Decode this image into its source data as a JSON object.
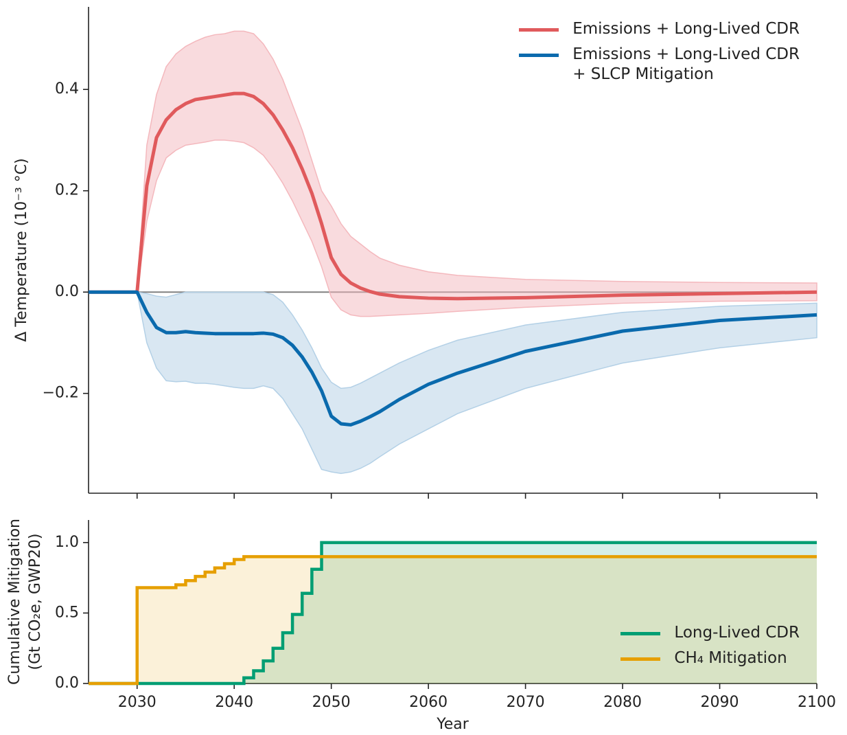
{
  "chart_data": [
    {
      "type": "line",
      "ylabel": "Δ Temperature (10⁻³ °C)",
      "xlim": [
        2025,
        2100
      ],
      "ylim": [
        -0.397,
        0.563
      ],
      "xticks": [
        2030,
        2040,
        2050,
        2060,
        2070,
        2080,
        2090,
        2100
      ],
      "show_xticklabels": false,
      "yticks": [
        {
          "value": -0.2,
          "label": "−0.2"
        },
        {
          "value": 0,
          "label": "0.0"
        },
        0.2,
        0.4
      ],
      "axhline": 0,
      "legend": "upper right",
      "x": [
        2025,
        2030,
        2031,
        2032,
        2033,
        2034,
        2035,
        2036,
        2037,
        2038,
        2039,
        2040,
        2041,
        2042,
        2043,
        2044,
        2045,
        2046,
        2047,
        2048,
        2049,
        2050,
        2051,
        2052,
        2053,
        2054,
        2055,
        2057,
        2060,
        2063,
        2070,
        2080,
        2090,
        2100
      ],
      "series": [
        {
          "name": "Emissions + Long-Lived CDR",
          "color": "#e05a5c",
          "band_color": "#f4b8bd",
          "values": [
            0,
            0,
            0.21,
            0.305,
            0.34,
            0.36,
            0.372,
            0.38,
            0.383,
            0.386,
            0.389,
            0.392,
            0.392,
            0.386,
            0.372,
            0.35,
            0.32,
            0.285,
            0.243,
            0.195,
            0.135,
            0.068,
            0.035,
            0.018,
            0.008,
            0.001,
            -0.004,
            -0.009,
            -0.012,
            -0.013,
            -0.011,
            -0.006,
            -0.003,
            0
          ],
          "upper": [
            0,
            0,
            0.29,
            0.39,
            0.445,
            0.47,
            0.485,
            0.495,
            0.503,
            0.508,
            0.51,
            0.515,
            0.515,
            0.51,
            0.49,
            0.46,
            0.42,
            0.37,
            0.32,
            0.26,
            0.2,
            0.17,
            0.135,
            0.11,
            0.095,
            0.08,
            0.067,
            0.053,
            0.04,
            0.033,
            0.025,
            0.021,
            0.019,
            0.018
          ],
          "lower": [
            0,
            0,
            0.14,
            0.22,
            0.265,
            0.28,
            0.29,
            0.293,
            0.296,
            0.3,
            0.3,
            0.298,
            0.295,
            0.285,
            0.27,
            0.245,
            0.215,
            0.18,
            0.14,
            0.1,
            0.05,
            -0.01,
            -0.035,
            -0.045,
            -0.048,
            -0.048,
            -0.047,
            -0.045,
            -0.042,
            -0.038,
            -0.03,
            -0.022,
            -0.018,
            -0.017
          ]
        },
        {
          "name": "Emissions + Long-Lived CDR\n+ SLCP Mitigation",
          "color": "#0a6aad",
          "band_color": "#b3d0e6",
          "values": [
            0,
            0,
            -0.04,
            -0.07,
            -0.08,
            -0.08,
            -0.078,
            -0.08,
            -0.081,
            -0.082,
            -0.082,
            -0.082,
            -0.082,
            -0.082,
            -0.081,
            -0.083,
            -0.09,
            -0.105,
            -0.128,
            -0.158,
            -0.195,
            -0.245,
            -0.26,
            -0.262,
            -0.255,
            -0.246,
            -0.236,
            -0.212,
            -0.182,
            -0.16,
            -0.117,
            -0.077,
            -0.056,
            -0.045
          ],
          "upper": [
            0,
            0,
            -0.003,
            -0.008,
            -0.01,
            -0.005,
            0,
            0,
            0,
            0,
            0,
            0,
            0,
            0,
            0,
            -0.005,
            -0.02,
            -0.045,
            -0.075,
            -0.11,
            -0.15,
            -0.178,
            -0.19,
            -0.188,
            -0.18,
            -0.17,
            -0.16,
            -0.14,
            -0.115,
            -0.095,
            -0.065,
            -0.04,
            -0.028,
            -0.022
          ],
          "lower": [
            0,
            0,
            -0.1,
            -0.15,
            -0.175,
            -0.177,
            -0.176,
            -0.18,
            -0.18,
            -0.182,
            -0.185,
            -0.188,
            -0.19,
            -0.19,
            -0.185,
            -0.19,
            -0.21,
            -0.24,
            -0.27,
            -0.31,
            -0.35,
            -0.355,
            -0.358,
            -0.355,
            -0.348,
            -0.338,
            -0.325,
            -0.3,
            -0.27,
            -0.24,
            -0.19,
            -0.14,
            -0.11,
            -0.09
          ]
        }
      ]
    },
    {
      "type": "step",
      "xlabel": "Year",
      "ylabel": [
        "Cumulative Mitigation",
        "(Gt CO₂e, GWP20)"
      ],
      "xlim": [
        2025,
        2100
      ],
      "ylim": [
        0,
        1.16
      ],
      "xticks": [
        2030,
        2040,
        2050,
        2060,
        2070,
        2080,
        2090,
        2100
      ],
      "show_xticklabels": true,
      "yticks": [
        {
          "value": 0,
          "label": "0.0"
        },
        0.5,
        {
          "value": 1,
          "label": "1.0"
        }
      ],
      "legend": "lower right",
      "x": [
        2025,
        2030,
        2031,
        2032,
        2033,
        2034,
        2035,
        2036,
        2037,
        2038,
        2039,
        2040,
        2041,
        2042,
        2043,
        2044,
        2045,
        2046,
        2047,
        2048,
        2049,
        2100
      ],
      "series": [
        {
          "name": "Long-Lived CDR",
          "color": "#009e73",
          "fill_color": "rgba(0,158,115,0.16)",
          "values": [
            0,
            0,
            0,
            0,
            0,
            0,
            0,
            0,
            0,
            0,
            0,
            0,
            0.04,
            0.09,
            0.16,
            0.25,
            0.36,
            0.49,
            0.64,
            0.81,
            1.0,
            1.0
          ]
        },
        {
          "name": "CH₄ Mitigation",
          "color": "#e69f00",
          "fill_color": "rgba(230,159,0,0.15)",
          "values": [
            0,
            0.68,
            0.68,
            0.68,
            0.68,
            0.7,
            0.73,
            0.76,
            0.79,
            0.82,
            0.85,
            0.88,
            0.9,
            0.9,
            0.9,
            0.9,
            0.9,
            0.9,
            0.9,
            0.9,
            0.9,
            0.9
          ]
        }
      ]
    }
  ]
}
